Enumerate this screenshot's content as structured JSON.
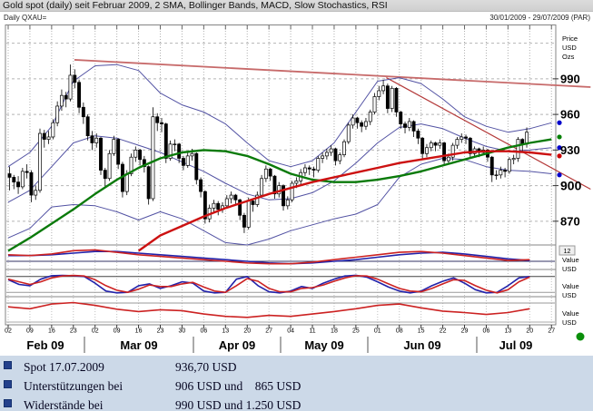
{
  "title_bar": {
    "title": "Gold spot (daily) seit Februar 2009, 2 SMA, Bollinger Bands, MACD, Slow Stochastics, RSI"
  },
  "subheader": {
    "instrument": "Daily QXAU=",
    "date_range": "30/01/2009 - 29/07/2009 (PAR)"
  },
  "price_axis": {
    "unit_lines": [
      "Price",
      "USD",
      "Ozs"
    ],
    "ticks": [
      990,
      960,
      930,
      900,
      870
    ],
    "bold_tick": 900,
    "indicator_period_box": "12"
  },
  "value_axis_label": [
    "Value",
    "USD"
  ],
  "x_axis": {
    "day_ticks": [
      "02",
      "09",
      "16",
      "23",
      "02",
      "09",
      "16",
      "23",
      "30",
      "06",
      "13",
      "20",
      "27",
      "04",
      "11",
      "18",
      "25",
      "01",
      "08",
      "15",
      "22",
      "29",
      "06",
      "13",
      "20",
      "27"
    ],
    "months": [
      "Feb 09",
      "Mar 09",
      "Apr 09",
      "May 09",
      "Jun 09",
      "Jul 09"
    ]
  },
  "info_panel": {
    "rows": [
      {
        "label": "Spot 17.07.2009",
        "value": "936,70 USD"
      },
      {
        "label": "Unterstützungen bei",
        "value": "906 USD und    865 USD"
      },
      {
        "label": "Widerstände bei",
        "value": "990 USD und 1.250 USD"
      }
    ]
  },
  "chart_data": {
    "type": "candlestick+indicators",
    "title": "Gold spot (daily) seit Februar 2009",
    "price_range_usd": [
      850,
      1035
    ],
    "price_gridlines": [
      1020,
      990,
      960,
      930,
      900,
      870
    ],
    "candles_ohlc": [
      [
        910,
        916,
        896,
        907
      ],
      [
        907,
        909,
        897,
        903
      ],
      [
        903,
        908,
        893,
        899
      ],
      [
        899,
        915,
        897,
        912
      ],
      [
        912,
        918,
        906,
        911
      ],
      [
        911,
        913,
        886,
        892
      ],
      [
        892,
        900,
        888,
        896
      ],
      [
        896,
        948,
        894,
        944
      ],
      [
        944,
        947,
        932,
        939
      ],
      [
        939,
        946,
        935,
        941
      ],
      [
        941,
        956,
        939,
        953
      ],
      [
        953,
        971,
        950,
        967
      ],
      [
        967,
        981,
        963,
        976
      ],
      [
        976,
        979,
        966,
        973
      ],
      [
        973,
        1002,
        971,
        993
      ],
      [
        993,
        998,
        982,
        987
      ],
      [
        987,
        989,
        961,
        966
      ],
      [
        966,
        970,
        952,
        958
      ],
      [
        958,
        960,
        938,
        942
      ],
      [
        942,
        946,
        930,
        936
      ],
      [
        936,
        944,
        932,
        940
      ],
      [
        940,
        941,
        909,
        913
      ],
      [
        913,
        915,
        898,
        906
      ],
      [
        906,
        930,
        904,
        927
      ],
      [
        927,
        942,
        925,
        939
      ],
      [
        939,
        940,
        914,
        918
      ],
      [
        918,
        920,
        890,
        895
      ],
      [
        895,
        913,
        892,
        910
      ],
      [
        910,
        927,
        908,
        924
      ],
      [
        924,
        933,
        920,
        930
      ],
      [
        930,
        931,
        917,
        922
      ],
      [
        922,
        925,
        911,
        916
      ],
      [
        916,
        917,
        884,
        889
      ],
      [
        889,
        966,
        887,
        958
      ],
      [
        958,
        961,
        946,
        953
      ],
      [
        953,
        957,
        945,
        952
      ],
      [
        952,
        953,
        919,
        923
      ],
      [
        923,
        938,
        921,
        935
      ],
      [
        935,
        939,
        929,
        935
      ],
      [
        935,
        936,
        919,
        923
      ],
      [
        923,
        925,
        913,
        917
      ],
      [
        917,
        928,
        915,
        925
      ],
      [
        925,
        931,
        921,
        927
      ],
      [
        927,
        928,
        901,
        905
      ],
      [
        905,
        907,
        890,
        895
      ],
      [
        895,
        896,
        868,
        872
      ],
      [
        872,
        884,
        869,
        881
      ],
      [
        881,
        888,
        877,
        885
      ],
      [
        885,
        887,
        875,
        880
      ],
      [
        880,
        886,
        877,
        883
      ],
      [
        883,
        892,
        881,
        889
      ],
      [
        889,
        895,
        885,
        892
      ],
      [
        892,
        893,
        884,
        888
      ],
      [
        888,
        889,
        871,
        875
      ],
      [
        875,
        877,
        860,
        865
      ],
      [
        865,
        890,
        863,
        887
      ],
      [
        887,
        888,
        878,
        884
      ],
      [
        884,
        895,
        882,
        892
      ],
      [
        892,
        909,
        890,
        906
      ],
      [
        906,
        917,
        903,
        914
      ],
      [
        914,
        915,
        904,
        908
      ],
      [
        908,
        909,
        889,
        893
      ],
      [
        893,
        903,
        890,
        900
      ],
      [
        900,
        901,
        879,
        883
      ],
      [
        883,
        891,
        880,
        888
      ],
      [
        888,
        904,
        886,
        902
      ],
      [
        902,
        907,
        898,
        904
      ],
      [
        904,
        914,
        901,
        911
      ],
      [
        911,
        918,
        908,
        915
      ],
      [
        915,
        917,
        909,
        914
      ],
      [
        914,
        916,
        907,
        913
      ],
      [
        913,
        925,
        911,
        923
      ],
      [
        923,
        928,
        919,
        925
      ],
      [
        925,
        931,
        922,
        928
      ],
      [
        928,
        934,
        925,
        931
      ],
      [
        931,
        932,
        917,
        921
      ],
      [
        921,
        928,
        918,
        926
      ],
      [
        926,
        939,
        924,
        937
      ],
      [
        937,
        953,
        935,
        951
      ],
      [
        951,
        960,
        948,
        957
      ],
      [
        957,
        958,
        948,
        953
      ],
      [
        953,
        955,
        945,
        950
      ],
      [
        950,
        957,
        947,
        954
      ],
      [
        954,
        964,
        951,
        962
      ],
      [
        962,
        978,
        960,
        975
      ],
      [
        975,
        984,
        972,
        980
      ],
      [
        980,
        989,
        977,
        984
      ],
      [
        984,
        986,
        961,
        965
      ],
      [
        965,
        984,
        962,
        982
      ],
      [
        982,
        983,
        958,
        962
      ],
      [
        962,
        963,
        948,
        952
      ],
      [
        952,
        954,
        944,
        949
      ],
      [
        949,
        957,
        946,
        954
      ],
      [
        954,
        955,
        941,
        946
      ],
      [
        946,
        948,
        935,
        940
      ],
      [
        940,
        941,
        923,
        927
      ],
      [
        927,
        935,
        924,
        932
      ],
      [
        932,
        938,
        929,
        936
      ],
      [
        936,
        937,
        929,
        934
      ],
      [
        934,
        939,
        931,
        936
      ],
      [
        936,
        937,
        917,
        921
      ],
      [
        921,
        927,
        918,
        924
      ],
      [
        924,
        936,
        921,
        934
      ],
      [
        934,
        941,
        931,
        939
      ],
      [
        939,
        944,
        936,
        941
      ],
      [
        941,
        943,
        935,
        940
      ],
      [
        940,
        941,
        923,
        927
      ],
      [
        927,
        933,
        924,
        931
      ],
      [
        931,
        932,
        924,
        928
      ],
      [
        928,
        933,
        926,
        930
      ],
      [
        930,
        931,
        920,
        924
      ],
      [
        924,
        925,
        903,
        909
      ],
      [
        909,
        913,
        905,
        909
      ],
      [
        909,
        916,
        906,
        913
      ],
      [
        913,
        915,
        907,
        912
      ],
      [
        912,
        924,
        910,
        922
      ],
      [
        922,
        926,
        918,
        923
      ],
      [
        923,
        941,
        920,
        939
      ],
      [
        939,
        940,
        929,
        935
      ],
      [
        935,
        949,
        932,
        945
      ]
    ],
    "overlays": {
      "bollinger_upper": {
        "color": "#5252a3",
        "weekly": [
          916,
          928,
          950,
          988,
          1001,
          1002,
          997,
          978,
          968,
          962,
          952,
          936,
          921,
          916,
          921,
          936,
          962,
          988,
          991,
          986,
          973,
          958,
          950,
          945,
          948,
          953
        ]
      },
      "bollinger_middle": {
        "color": "#5252a3",
        "weekly": [
          886,
          896,
          916,
          936,
          942,
          940,
          934,
          928,
          920,
          912,
          902,
          893,
          888,
          889,
          894,
          904,
          919,
          936,
          949,
          952,
          948,
          940,
          933,
          929,
          930,
          932
        ]
      },
      "bollinger_lower": {
        "color": "#5252a3",
        "weekly": [
          856,
          864,
          882,
          884,
          883,
          878,
          871,
          878,
          872,
          862,
          852,
          850,
          855,
          862,
          867,
          872,
          876,
          884,
          907,
          918,
          923,
          922,
          916,
          913,
          912,
          910
        ]
      },
      "sma_green": {
        "color": "#0a7a0a",
        "weekly": [
          845,
          856,
          868,
          880,
          893,
          905,
          915,
          923,
          928,
          930,
          929,
          925,
          918,
          910,
          905,
          903,
          903,
          905,
          908,
          912,
          917,
          922,
          927,
          932,
          936,
          939
        ]
      },
      "sma_red": {
        "color": "#cc1111",
        "start_week": 6,
        "weekly": [
          845,
          858,
          866,
          874,
          881,
          887,
          893,
          898,
          903,
          907,
          911,
          915,
          919,
          922,
          925,
          928,
          929,
          929,
          928,
          926
        ]
      },
      "trendline_long": {
        "color": "#c76a6a",
        "from": {
          "week": 3.05,
          "price": 1006
        },
        "to": {
          "week": 26.8,
          "price": 983
        }
      },
      "trendline_steep": {
        "color": "#b43a3a",
        "from": {
          "week": 17.4,
          "price": 991
        },
        "to": {
          "week": 26.8,
          "price": 897
        }
      }
    },
    "last_value_markers": [
      {
        "series": "bollinger_upper",
        "color": "#0000cc",
        "price": 953
      },
      {
        "series": "sma_green",
        "color": "#008000",
        "price": 941
      },
      {
        "series": "bollinger_middle",
        "color": "#0000cc",
        "price": 932
      },
      {
        "series": "sma_red",
        "color": "#cc0000",
        "price": 925
      },
      {
        "series": "bollinger_lower",
        "color": "#0000cc",
        "price": 909
      }
    ],
    "macd": {
      "color_line": "#cc2222",
      "color_signal": "#2222aa",
      "zero_ref": 0,
      "line": [
        8,
        7,
        9,
        13,
        14,
        11,
        8,
        6,
        4,
        2,
        0,
        -2,
        -3,
        -3,
        -1,
        2,
        5,
        8,
        11,
        12,
        10,
        7,
        4,
        1,
        2
      ],
      "signal": [
        7,
        7,
        8,
        10,
        12,
        12,
        10,
        8,
        6,
        4,
        2,
        0,
        -2,
        -3,
        -2,
        0,
        2,
        5,
        8,
        10,
        11,
        9,
        6,
        3,
        1
      ]
    },
    "stochastic": {
      "color_k": "#2222aa",
      "color_d": "#cc2222",
      "ref_lines": [
        80,
        20
      ],
      "k": [
        68,
        50,
        45,
        70,
        83,
        84,
        83,
        80,
        55,
        25,
        18,
        20,
        45,
        52,
        35,
        45,
        60,
        55,
        25,
        18,
        20,
        70,
        80,
        45,
        22,
        18,
        25,
        42,
        35,
        55,
        70,
        82,
        85,
        78,
        60,
        40,
        25,
        18,
        25,
        45,
        62,
        75,
        55,
        30,
        18,
        20,
        45,
        75,
        80
      ],
      "d": [
        70,
        60,
        50,
        60,
        75,
        82,
        84,
        82,
        68,
        45,
        28,
        20,
        32,
        48,
        42,
        42,
        52,
        58,
        40,
        25,
        20,
        45,
        72,
        62,
        35,
        22,
        22,
        35,
        38,
        48,
        62,
        75,
        83,
        82,
        70,
        52,
        35,
        25,
        22,
        35,
        52,
        68,
        65,
        45,
        28,
        18,
        30,
        60,
        78
      ]
    },
    "rsi": {
      "color": "#cc2222",
      "ref_lines": [
        70,
        30
      ],
      "values": [
        62,
        58,
        68,
        71,
        65,
        57,
        52,
        56,
        54,
        47,
        42,
        40,
        44,
        42,
        47,
        52,
        58,
        65,
        68,
        60,
        53,
        50,
        46,
        50,
        58
      ]
    }
  }
}
